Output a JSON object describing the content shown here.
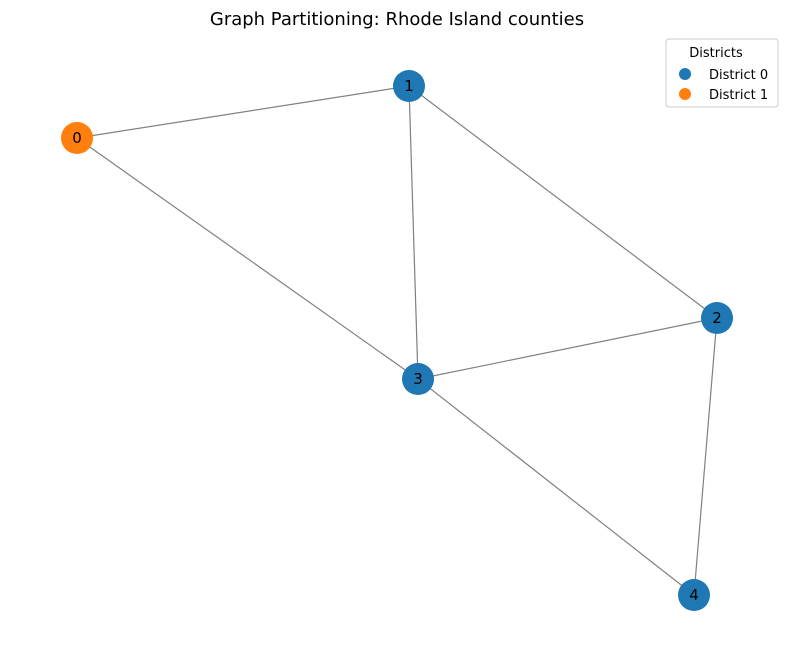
{
  "title": "Graph Partitioning: Rhode Island counties",
  "legend": {
    "title": "Districts",
    "placement": "top-right",
    "items": [
      {
        "label": "District 0",
        "color": "#1f77b4"
      },
      {
        "label": "District 1",
        "color": "#ff7f0e"
      }
    ]
  },
  "graph": {
    "edge_color": "#808080",
    "nodes": [
      {
        "id": "0",
        "district": 1
      },
      {
        "id": "1",
        "district": 0
      },
      {
        "id": "2",
        "district": 0
      },
      {
        "id": "3",
        "district": 0
      },
      {
        "id": "4",
        "district": 0
      }
    ],
    "edges": [
      [
        "0",
        "1"
      ],
      [
        "0",
        "3"
      ],
      [
        "1",
        "3"
      ],
      [
        "1",
        "2"
      ],
      [
        "2",
        "3"
      ],
      [
        "2",
        "4"
      ],
      [
        "3",
        "4"
      ]
    ]
  }
}
